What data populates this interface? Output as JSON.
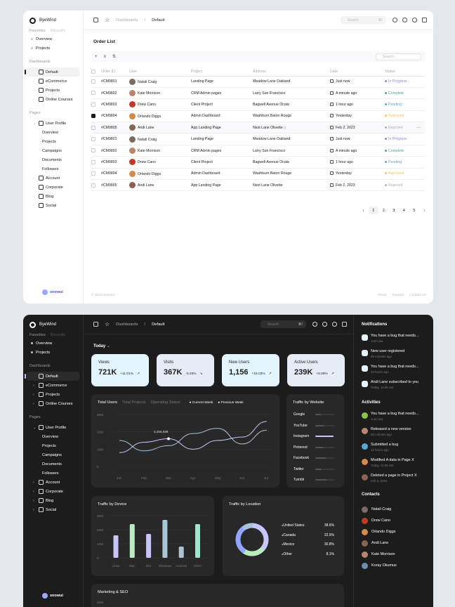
{
  "brand": "ByeWind",
  "favorites_tabs": [
    "Favorites",
    "Recently"
  ],
  "favorites": [
    "Overview",
    "Projects"
  ],
  "sections": {
    "dashboards": "Dashboards",
    "pages": "Pages"
  },
  "dashboards": [
    "Default",
    "eCommerce",
    "Projects",
    "Online Courses"
  ],
  "pages": [
    "User Profile",
    "Account",
    "Corporate",
    "Blog",
    "Social"
  ],
  "user_profile_sub": [
    "Overview",
    "Projects",
    "Campaigns",
    "Documents",
    "Followers"
  ],
  "logo_text": "snowui",
  "breadcrumb": [
    "Dashboards",
    "Default"
  ],
  "search_placeholder": "Search",
  "search_shortcut": "⌘/",
  "order_list": {
    "title": "Order List",
    "search_placeholder": "Search",
    "headers": [
      "Order ID",
      "User",
      "Project",
      "Address",
      "Date",
      "Status"
    ],
    "rows": [
      {
        "id": "#CM9801",
        "user": "Natali Craig",
        "project": "Landing Page",
        "address": "Meadow Lane Oakland",
        "date": "Just now",
        "status": "In Progress",
        "avatar": "#7a6a63"
      },
      {
        "id": "#CM9802",
        "user": "Kate Morrison",
        "project": "CRM Admin pages",
        "address": "Larry San Francisco",
        "date": "A minute ago",
        "status": "Complete",
        "avatar": "#b9866d"
      },
      {
        "id": "#CM9803",
        "user": "Drew Cano",
        "project": "Client Project",
        "address": "Bagwell Avenue Ocala",
        "date": "1 hour ago",
        "status": "Pending",
        "avatar": "#c0392b"
      },
      {
        "id": "#CM9804",
        "user": "Orlando Diggs",
        "project": "Admin Dashboard",
        "address": "Washburn Baton Rouge",
        "date": "Yesterday",
        "status": "Approved",
        "avatar": "#d08a4a"
      },
      {
        "id": "#CM9805",
        "user": "Andi Lane",
        "project": "App Landing Page",
        "address": "Nest Lane Olivette",
        "date": "Feb 2, 2023",
        "status": "Rejected",
        "avatar": "#8a6450"
      },
      {
        "id": "#CM9801",
        "user": "Natali Craig",
        "project": "Landing Page",
        "address": "Meadow Lane Oakland",
        "date": "Just now",
        "status": "In Progress",
        "avatar": "#7a6a63"
      },
      {
        "id": "#CM9802",
        "user": "Kate Morrison",
        "project": "CRM Admin pages",
        "address": "Larry San Francisco",
        "date": "A minute ago",
        "status": "Complete",
        "avatar": "#b9866d"
      },
      {
        "id": "#CM9803",
        "user": "Drew Cano",
        "project": "Client Project",
        "address": "Bagwell Avenue Ocala",
        "date": "1 hour ago",
        "status": "Pending",
        "avatar": "#c0392b"
      },
      {
        "id": "#CM9804",
        "user": "Orlando Diggs",
        "project": "Admin Dashboard",
        "address": "Washburn Baton Rouge",
        "date": "Yesterday",
        "status": "Approved",
        "avatar": "#d08a4a"
      },
      {
        "id": "#CM9805",
        "user": "Andi Lane",
        "project": "App Landing Page",
        "address": "Nest Lane Olivette",
        "date": "Feb 2, 2023",
        "status": "Rejected",
        "avatar": "#8a6450"
      }
    ],
    "status_colors": {
      "In Progress": "#8a8cd9",
      "Complete": "#4aa785",
      "Pending": "#59a8d4",
      "Approved": "#ffc555",
      "Rejected": "#b0b0b0"
    },
    "pages": [
      "1",
      "2",
      "3",
      "4",
      "5"
    ],
    "current_page": "1"
  },
  "footer": {
    "copyright": "© 2023 SnowUI",
    "links": [
      "About",
      "Support",
      "Contact Us"
    ]
  },
  "today_label": "Today",
  "kpis": [
    {
      "label": "Views",
      "value": "721K",
      "change": "+11.01%",
      "color": "#e3f5ff"
    },
    {
      "label": "Visits",
      "value": "367K",
      "change": "-0.03%",
      "color": "#e5ecf6"
    },
    {
      "label": "New Users",
      "value": "1,156",
      "change": "+15.03%",
      "color": "#e3f5ff"
    },
    {
      "label": "Active Users",
      "value": "239K",
      "change": "+6.08%",
      "color": "#e5ecf6"
    }
  ],
  "users_chart": {
    "tabs": [
      "Total Users",
      "Total Projects",
      "Operating Status"
    ],
    "legend": [
      "Current Week",
      "Previous Week"
    ],
    "tooltip": "3,256,598"
  },
  "chart_data": [
    {
      "type": "line",
      "x": [
        "Jan",
        "Feb",
        "Mar",
        "Apr",
        "May",
        "Jun",
        "Jul"
      ],
      "ylim": [
        0,
        30
      ],
      "yticks": [
        "0",
        "10M",
        "20M",
        "30M"
      ],
      "series": [
        {
          "name": "Current Week",
          "values": [
            8,
            14,
            16,
            10,
            15,
            17,
            26
          ]
        },
        {
          "name": "Previous Week",
          "values": [
            15,
            9,
            12,
            19,
            22,
            13,
            21
          ]
        }
      ]
    },
    {
      "type": "bar",
      "title": "Traffic by Device",
      "categories": [
        "Linux",
        "Mac",
        "iOS",
        "Windows",
        "Android",
        "Other"
      ],
      "values": [
        16,
        24,
        17,
        27,
        8,
        24
      ],
      "ylim": [
        0,
        30
      ],
      "yticks": [
        "0",
        "10M",
        "20M",
        "30M"
      ],
      "colors": [
        "#c6c7f8",
        "#baedbd",
        "#c6c7f8",
        "#a8c5da",
        "#a8c5da",
        "#a1e3cb"
      ]
    },
    {
      "type": "pie",
      "title": "Traffic by Location",
      "categories": [
        "United States",
        "Canada",
        "Mexico",
        "Other"
      ],
      "values": [
        38.6,
        22.5,
        30.8,
        8.1
      ],
      "labels": [
        "38.6%",
        "22.5%",
        "30.8%",
        "8.1%"
      ],
      "colors": [
        "#c6c7f8",
        "#baedbd",
        "#95a4fc",
        "#a8c5da"
      ]
    }
  ],
  "traffic_website": {
    "title": "Traffic by Website",
    "sites": [
      {
        "name": "Google",
        "level": 0.3
      },
      {
        "name": "YouTube",
        "level": 0.45
      },
      {
        "name": "Instagram",
        "level": 0.95
      },
      {
        "name": "Pinterest",
        "level": 0.4
      },
      {
        "name": "Facebook",
        "level": 0.55
      },
      {
        "name": "Twitter",
        "level": 0.35
      },
      {
        "name": "Tumblr",
        "level": 0.6
      }
    ]
  },
  "marketing_title": "Marketing & SEO",
  "marketing_tick": "30M",
  "notifications": {
    "title": "Notifications",
    "items": [
      {
        "text": "You have a bug that needs...",
        "time": "Just now"
      },
      {
        "text": "New user registered",
        "time": "59 minutes ago"
      },
      {
        "text": "You have a bug that needs...",
        "time": "12 hours ago"
      },
      {
        "text": "Andi Lane subscribed to you",
        "time": "Today, 11:59 AM"
      }
    ]
  },
  "activities": {
    "title": "Activities",
    "items": [
      {
        "text": "You have a bug that needs...",
        "time": "Just now"
      },
      {
        "text": "Released a new version",
        "time": "59 minutes ago"
      },
      {
        "text": "Submitted a bug",
        "time": "12 hours ago"
      },
      {
        "text": "Modified A data in Page X",
        "time": "Today, 11:59 AM"
      },
      {
        "text": "Deleted a page in Project X",
        "time": "Feb 2, 2023"
      }
    ]
  },
  "contacts": {
    "title": "Contacts",
    "items": [
      {
        "name": "Natali Craig",
        "avatar": "#7a6a63"
      },
      {
        "name": "Drew Cano",
        "avatar": "#c0392b"
      },
      {
        "name": "Orlando Diggs",
        "avatar": "#d08a4a"
      },
      {
        "name": "Andi Lane",
        "avatar": "#8a6450"
      },
      {
        "name": "Kate Morrison",
        "avatar": "#b9866d"
      },
      {
        "name": "Koray Okumus",
        "avatar": "#6b8fb0"
      }
    ]
  }
}
